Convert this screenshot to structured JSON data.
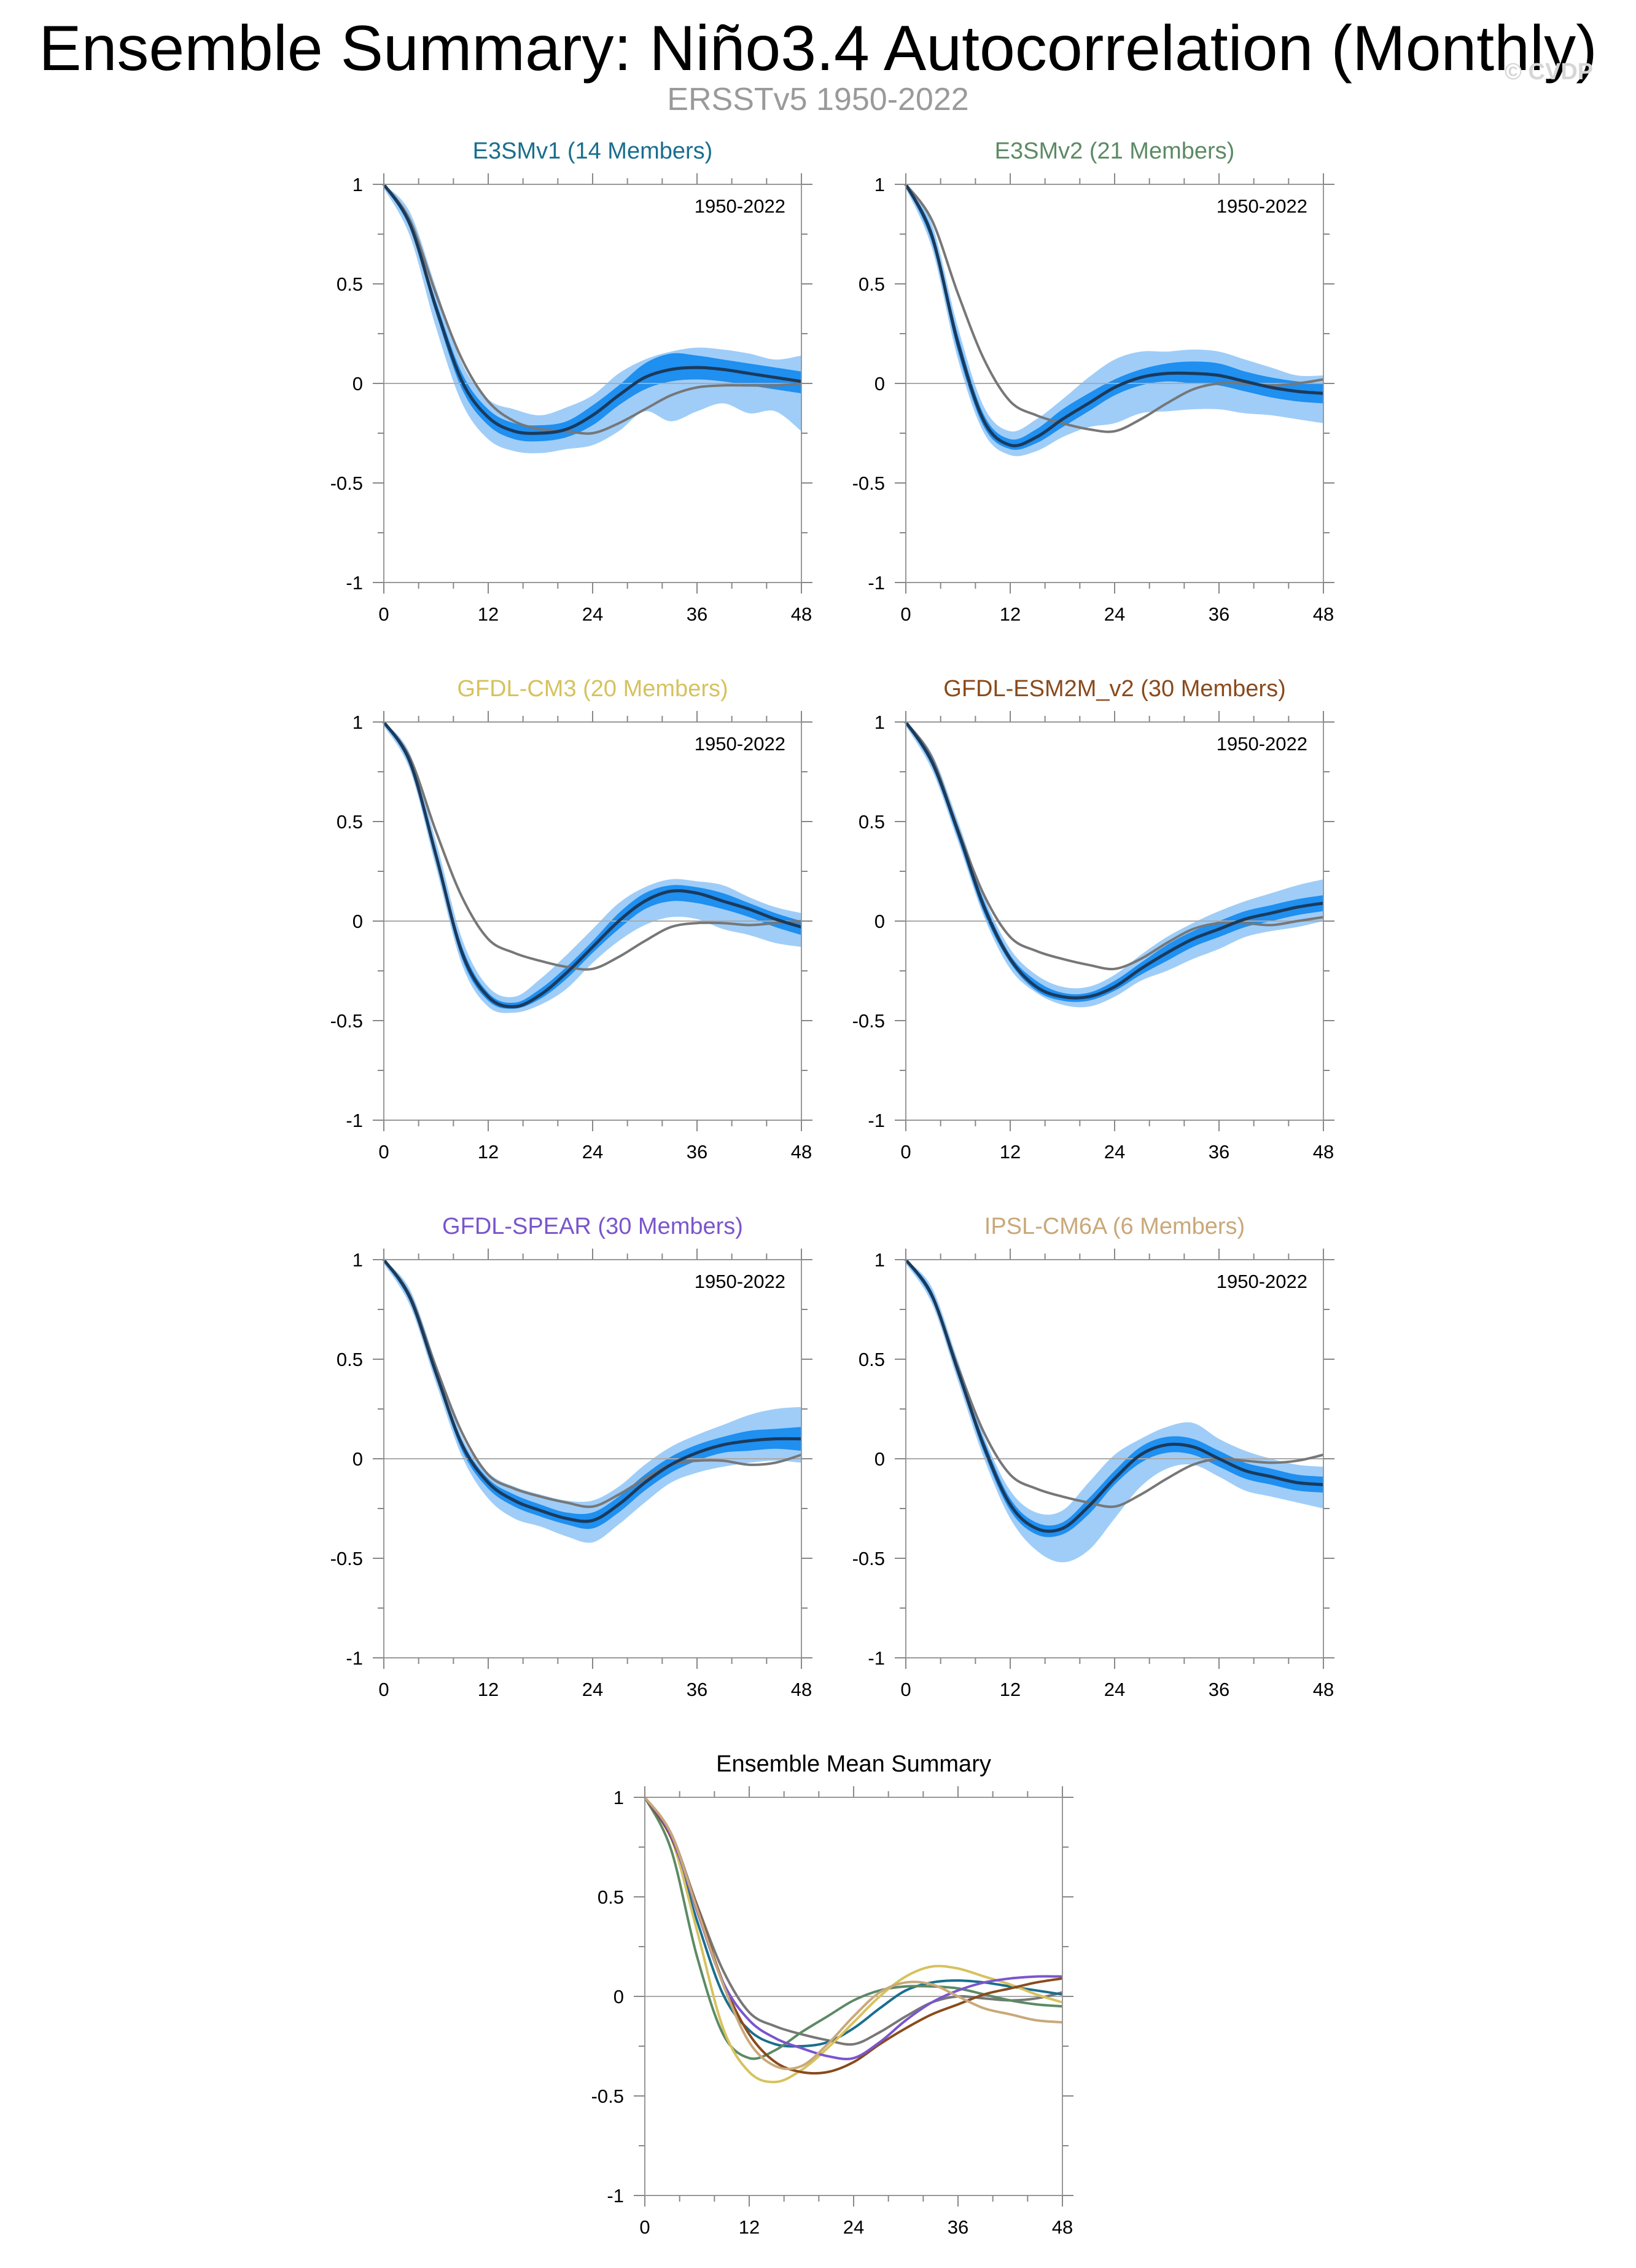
{
  "header": {
    "title": "Ensemble Summary: Niño3.4 Autocorrelation (Monthly)",
    "subtitle": "ERSSTv5 1950-2022",
    "watermark": "© CVDP"
  },
  "colors": {
    "obs_line": "#777777",
    "ens_mean_line": "#1a3a5c",
    "spread_outer": "#9fcdf8",
    "spread_inner": "#1f8ff0",
    "zero_line": "#aaaaaa"
  },
  "chart_data": [
    {
      "type": "line",
      "title": "E3SMv1 (14 Members)",
      "title_color": "#1a6e8e",
      "annotation": "1950-2022",
      "x_ticks": [
        0,
        12,
        24,
        36,
        48
      ],
      "y_ticks": [
        -1,
        -0.5,
        0,
        0.5,
        1
      ],
      "xlim": [
        0,
        48
      ],
      "ylim": [
        -1,
        1
      ],
      "lags": [
        0,
        3,
        6,
        9,
        12,
        15,
        18,
        21,
        24,
        27,
        30,
        33,
        36,
        39,
        42,
        45,
        48
      ],
      "series": [
        {
          "values": [
            1.0,
            0.82,
            0.45,
            0.12,
            -0.09,
            -0.19,
            -0.23,
            -0.24,
            -0.25,
            -0.2,
            -0.13,
            -0.06,
            -0.02,
            -0.01,
            -0.01,
            -0.01,
            0.0
          ]
        },
        {
          "values": [
            1.0,
            0.8,
            0.38,
            0.01,
            -0.17,
            -0.24,
            -0.25,
            -0.23,
            -0.16,
            -0.06,
            0.03,
            0.07,
            0.08,
            0.07,
            0.05,
            0.03,
            0.01
          ]
        }
      ],
      "band_outer": {
        "lower": [
          0.98,
          0.74,
          0.28,
          -0.1,
          -0.28,
          -0.34,
          -0.35,
          -0.33,
          -0.31,
          -0.24,
          -0.14,
          -0.19,
          -0.14,
          -0.1,
          -0.15,
          -0.14,
          -0.24
        ],
        "upper": [
          1.0,
          0.86,
          0.48,
          0.1,
          -0.08,
          -0.13,
          -0.16,
          -0.12,
          -0.06,
          0.05,
          0.12,
          0.16,
          0.18,
          0.17,
          0.15,
          0.12,
          0.14
        ]
      },
      "band_inner": {
        "lower": [
          0.99,
          0.78,
          0.35,
          -0.03,
          -0.21,
          -0.28,
          -0.29,
          -0.27,
          -0.21,
          -0.11,
          -0.03,
          0.01,
          0.02,
          0.01,
          -0.01,
          -0.03,
          -0.05
        ],
        "upper": [
          1.0,
          0.82,
          0.41,
          0.05,
          -0.13,
          -0.2,
          -0.21,
          -0.19,
          -0.11,
          -0.01,
          0.1,
          0.15,
          0.14,
          0.12,
          0.1,
          0.08,
          0.06
        ]
      }
    },
    {
      "type": "line",
      "title": "E3SMv2 (21 Members)",
      "title_color": "#5c8a64",
      "annotation": "1950-2022",
      "x_ticks": [
        0,
        12,
        24,
        36,
        48
      ],
      "y_ticks": [
        -1,
        -0.5,
        0,
        0.5,
        1
      ],
      "xlim": [
        0,
        48
      ],
      "ylim": [
        -1,
        1
      ],
      "lags": [
        0,
        3,
        6,
        9,
        12,
        15,
        18,
        21,
        24,
        27,
        30,
        33,
        36,
        39,
        42,
        45,
        48
      ],
      "series": [
        {
          "values": [
            1.0,
            0.82,
            0.45,
            0.12,
            -0.09,
            -0.16,
            -0.2,
            -0.23,
            -0.24,
            -0.18,
            -0.1,
            -0.03,
            0.0,
            0.0,
            -0.01,
            0.0,
            0.02
          ]
        },
        {
          "values": [
            1.0,
            0.74,
            0.2,
            -0.19,
            -0.31,
            -0.27,
            -0.18,
            -0.1,
            -0.02,
            0.03,
            0.05,
            0.05,
            0.04,
            0.01,
            -0.02,
            -0.04,
            -0.05
          ]
        }
      ],
      "band_outer": {
        "lower": [
          0.98,
          0.68,
          0.12,
          -0.25,
          -0.36,
          -0.34,
          -0.27,
          -0.22,
          -0.2,
          -0.15,
          -0.14,
          -0.13,
          -0.13,
          -0.15,
          -0.16,
          -0.18,
          -0.2
        ],
        "upper": [
          1.0,
          0.8,
          0.28,
          -0.12,
          -0.24,
          -0.18,
          -0.08,
          0.03,
          0.12,
          0.16,
          0.16,
          0.17,
          0.16,
          0.12,
          0.08,
          0.04,
          0.04
        ]
      },
      "band_inner": {
        "lower": [
          0.99,
          0.71,
          0.16,
          -0.22,
          -0.33,
          -0.3,
          -0.22,
          -0.14,
          -0.06,
          -0.01,
          0.01,
          0.0,
          -0.01,
          -0.04,
          -0.07,
          -0.09,
          -0.1
        ],
        "upper": [
          1.0,
          0.77,
          0.24,
          -0.16,
          -0.28,
          -0.23,
          -0.13,
          -0.05,
          0.02,
          0.07,
          0.1,
          0.11,
          0.1,
          0.06,
          0.03,
          0.01,
          0.0
        ]
      }
    },
    {
      "type": "line",
      "title": "GFDL-CM3 (20 Members)",
      "title_color": "#d6c25e",
      "annotation": "1950-2022",
      "x_ticks": [
        0,
        12,
        24,
        36,
        48
      ],
      "y_ticks": [
        -1,
        -0.5,
        0,
        0.5,
        1
      ],
      "xlim": [
        0,
        48
      ],
      "ylim": [
        -1,
        1
      ],
      "lags": [
        0,
        3,
        6,
        9,
        12,
        15,
        18,
        21,
        24,
        27,
        30,
        33,
        36,
        39,
        42,
        45,
        48
      ],
      "series": [
        {
          "values": [
            1.0,
            0.82,
            0.45,
            0.12,
            -0.09,
            -0.16,
            -0.2,
            -0.23,
            -0.24,
            -0.18,
            -0.1,
            -0.03,
            -0.01,
            -0.01,
            -0.02,
            -0.01,
            0.0
          ]
        },
        {
          "values": [
            1.0,
            0.8,
            0.33,
            -0.16,
            -0.38,
            -0.43,
            -0.37,
            -0.26,
            -0.13,
            0.0,
            0.1,
            0.15,
            0.14,
            0.1,
            0.06,
            0.01,
            -0.03
          ]
        }
      ],
      "band_outer": {
        "lower": [
          0.98,
          0.76,
          0.27,
          -0.22,
          -0.43,
          -0.46,
          -0.42,
          -0.34,
          -0.21,
          -0.1,
          -0.02,
          0.02,
          0.01,
          -0.04,
          -0.07,
          -0.11,
          -0.13
        ],
        "upper": [
          1.0,
          0.84,
          0.4,
          -0.09,
          -0.33,
          -0.38,
          -0.29,
          -0.17,
          -0.04,
          0.09,
          0.17,
          0.21,
          0.2,
          0.18,
          0.12,
          0.07,
          0.04
        ]
      },
      "band_inner": {
        "lower": [
          0.99,
          0.78,
          0.3,
          -0.19,
          -0.4,
          -0.44,
          -0.39,
          -0.29,
          -0.16,
          -0.04,
          0.06,
          0.1,
          0.09,
          0.06,
          0.02,
          -0.03,
          -0.07
        ],
        "upper": [
          1.0,
          0.82,
          0.36,
          -0.13,
          -0.36,
          -0.41,
          -0.34,
          -0.23,
          -0.1,
          0.04,
          0.14,
          0.18,
          0.17,
          0.14,
          0.09,
          0.04,
          0.0
        ]
      }
    },
    {
      "type": "line",
      "title": "GFDL-ESM2M_v2 (30 Members)",
      "title_color": "#8a4a1c",
      "annotation": "1950-2022",
      "x_ticks": [
        0,
        12,
        24,
        36,
        48
      ],
      "y_ticks": [
        -1,
        -0.5,
        0,
        0.5,
        1
      ],
      "xlim": [
        0,
        48
      ],
      "ylim": [
        -1,
        1
      ],
      "lags": [
        0,
        3,
        6,
        9,
        12,
        15,
        18,
        21,
        24,
        27,
        30,
        33,
        36,
        39,
        42,
        45,
        48
      ],
      "series": [
        {
          "values": [
            1.0,
            0.82,
            0.46,
            0.13,
            -0.08,
            -0.15,
            -0.19,
            -0.22,
            -0.24,
            -0.19,
            -0.11,
            -0.04,
            -0.01,
            -0.01,
            -0.02,
            0.0,
            0.02
          ]
        },
        {
          "values": [
            1.0,
            0.8,
            0.45,
            0.07,
            -0.19,
            -0.33,
            -0.38,
            -0.38,
            -0.33,
            -0.24,
            -0.16,
            -0.09,
            -0.04,
            0.01,
            0.04,
            0.07,
            0.09
          ]
        }
      ],
      "band_outer": {
        "lower": [
          0.98,
          0.76,
          0.4,
          0.02,
          -0.24,
          -0.36,
          -0.42,
          -0.43,
          -0.38,
          -0.3,
          -0.25,
          -0.19,
          -0.14,
          -0.08,
          -0.05,
          -0.03,
          0.0
        ],
        "upper": [
          1.0,
          0.84,
          0.5,
          0.12,
          -0.14,
          -0.27,
          -0.33,
          -0.33,
          -0.27,
          -0.17,
          -0.08,
          -0.01,
          0.05,
          0.1,
          0.14,
          0.18,
          0.21
        ]
      },
      "band_inner": {
        "lower": [
          0.99,
          0.78,
          0.42,
          0.04,
          -0.21,
          -0.35,
          -0.4,
          -0.4,
          -0.35,
          -0.27,
          -0.2,
          -0.13,
          -0.08,
          -0.03,
          0.0,
          0.03,
          0.05
        ],
        "upper": [
          1.0,
          0.82,
          0.48,
          0.1,
          -0.17,
          -0.3,
          -0.36,
          -0.36,
          -0.3,
          -0.21,
          -0.12,
          -0.05,
          0.0,
          0.05,
          0.08,
          0.11,
          0.13
        ]
      }
    },
    {
      "type": "line",
      "title": "GFDL-SPEAR (30 Members)",
      "title_color": "#7a55cc",
      "annotation": "1950-2022",
      "x_ticks": [
        0,
        12,
        24,
        36,
        48
      ],
      "y_ticks": [
        -1,
        -0.5,
        0,
        0.5,
        1
      ],
      "xlim": [
        0,
        48
      ],
      "ylim": [
        -1,
        1
      ],
      "lags": [
        0,
        3,
        6,
        9,
        12,
        15,
        18,
        21,
        24,
        27,
        30,
        33,
        36,
        39,
        42,
        45,
        48
      ],
      "series": [
        {
          "values": [
            1.0,
            0.82,
            0.46,
            0.13,
            -0.08,
            -0.15,
            -0.19,
            -0.22,
            -0.24,
            -0.18,
            -0.1,
            -0.03,
            -0.01,
            -0.01,
            -0.03,
            -0.02,
            0.02
          ]
        },
        {
          "values": [
            1.0,
            0.81,
            0.43,
            0.07,
            -0.12,
            -0.21,
            -0.26,
            -0.3,
            -0.31,
            -0.23,
            -0.12,
            -0.03,
            0.03,
            0.07,
            0.09,
            0.1,
            0.1
          ]
        }
      ],
      "band_outer": {
        "lower": [
          0.98,
          0.77,
          0.38,
          0.01,
          -0.2,
          -0.3,
          -0.34,
          -0.39,
          -0.42,
          -0.33,
          -0.22,
          -0.12,
          -0.07,
          -0.04,
          -0.02,
          -0.01,
          -0.02
        ],
        "upper": [
          1.0,
          0.85,
          0.48,
          0.11,
          -0.07,
          -0.14,
          -0.18,
          -0.21,
          -0.21,
          -0.14,
          -0.03,
          0.06,
          0.12,
          0.17,
          0.22,
          0.25,
          0.26
        ]
      },
      "band_inner": {
        "lower": [
          0.99,
          0.79,
          0.41,
          0.04,
          -0.15,
          -0.24,
          -0.29,
          -0.33,
          -0.35,
          -0.27,
          -0.16,
          -0.07,
          -0.01,
          0.03,
          0.04,
          0.05,
          0.04
        ],
        "upper": [
          1.0,
          0.83,
          0.45,
          0.09,
          -0.1,
          -0.18,
          -0.23,
          -0.27,
          -0.27,
          -0.19,
          -0.08,
          0.01,
          0.07,
          0.11,
          0.14,
          0.15,
          0.16
        ]
      }
    },
    {
      "type": "line",
      "title": "IPSL-CM6A (6 Members)",
      "title_color": "#c9a87a",
      "annotation": "1950-2022",
      "x_ticks": [
        0,
        12,
        24,
        36,
        48
      ],
      "y_ticks": [
        -1,
        -0.5,
        0,
        0.5,
        1
      ],
      "xlim": [
        0,
        48
      ],
      "ylim": [
        -1,
        1
      ],
      "lags": [
        0,
        3,
        6,
        9,
        12,
        15,
        18,
        21,
        24,
        27,
        30,
        33,
        36,
        39,
        42,
        45,
        48
      ],
      "series": [
        {
          "values": [
            1.0,
            0.82,
            0.46,
            0.13,
            -0.08,
            -0.15,
            -0.19,
            -0.22,
            -0.24,
            -0.18,
            -0.1,
            -0.03,
            0.0,
            -0.01,
            -0.02,
            -0.01,
            0.02
          ]
        },
        {
          "values": [
            1.0,
            0.82,
            0.44,
            0.06,
            -0.23,
            -0.35,
            -0.35,
            -0.24,
            -0.1,
            0.02,
            0.07,
            0.06,
            0.0,
            -0.06,
            -0.09,
            -0.12,
            -0.13
          ]
        }
      ],
      "band_outer": {
        "lower": [
          0.98,
          0.78,
          0.39,
          0.0,
          -0.3,
          -0.46,
          -0.52,
          -0.46,
          -0.3,
          -0.14,
          -0.05,
          -0.03,
          -0.09,
          -0.16,
          -0.19,
          -0.22,
          -0.25
        ],
        "upper": [
          1.0,
          0.86,
          0.49,
          0.11,
          -0.16,
          -0.27,
          -0.26,
          -0.12,
          0.02,
          0.1,
          0.16,
          0.18,
          0.1,
          0.04,
          0.0,
          -0.03,
          -0.04
        ]
      },
      "band_inner": {
        "lower": [
          0.99,
          0.8,
          0.42,
          0.03,
          -0.26,
          -0.38,
          -0.38,
          -0.28,
          -0.13,
          -0.02,
          0.03,
          0.02,
          -0.04,
          -0.1,
          -0.13,
          -0.16,
          -0.17
        ],
        "upper": [
          1.0,
          0.84,
          0.46,
          0.09,
          -0.2,
          -0.32,
          -0.32,
          -0.2,
          -0.06,
          0.06,
          0.11,
          0.1,
          0.04,
          -0.02,
          -0.05,
          -0.08,
          -0.09
        ]
      }
    },
    {
      "type": "line",
      "title": "Ensemble Mean Summary",
      "title_color": "#000000",
      "x_ticks": [
        0,
        12,
        24,
        36,
        48
      ],
      "y_ticks": [
        -1,
        -0.5,
        0,
        0.5,
        1
      ],
      "xlim": [
        0,
        48
      ],
      "ylim": [
        -1,
        1
      ],
      "lags": [
        0,
        3,
        6,
        9,
        12,
        15,
        18,
        21,
        24,
        27,
        30,
        33,
        36,
        39,
        42,
        45,
        48
      ],
      "series": [
        {
          "color": "#777777",
          "values": [
            1.0,
            0.82,
            0.46,
            0.13,
            -0.08,
            -0.15,
            -0.19,
            -0.22,
            -0.24,
            -0.18,
            -0.1,
            -0.03,
            0.0,
            -0.01,
            -0.02,
            -0.01,
            0.02
          ]
        },
        {
          "color": "#1a6e8e",
          "values": [
            1.0,
            0.8,
            0.38,
            0.01,
            -0.17,
            -0.24,
            -0.25,
            -0.23,
            -0.16,
            -0.06,
            0.03,
            0.07,
            0.08,
            0.07,
            0.05,
            0.03,
            0.01
          ]
        },
        {
          "color": "#5c8a64",
          "values": [
            1.0,
            0.74,
            0.2,
            -0.19,
            -0.31,
            -0.27,
            -0.18,
            -0.1,
            -0.02,
            0.03,
            0.05,
            0.05,
            0.04,
            0.01,
            -0.02,
            -0.04,
            -0.05
          ]
        },
        {
          "color": "#d6c25e",
          "values": [
            1.0,
            0.8,
            0.33,
            -0.16,
            -0.38,
            -0.43,
            -0.37,
            -0.26,
            -0.13,
            0.0,
            0.1,
            0.15,
            0.14,
            0.1,
            0.06,
            0.01,
            -0.03
          ]
        },
        {
          "color": "#8a4a1c",
          "values": [
            1.0,
            0.8,
            0.45,
            0.07,
            -0.19,
            -0.33,
            -0.38,
            -0.38,
            -0.33,
            -0.24,
            -0.16,
            -0.09,
            -0.04,
            0.01,
            0.04,
            0.07,
            0.09
          ]
        },
        {
          "color": "#7a55cc",
          "values": [
            1.0,
            0.81,
            0.43,
            0.07,
            -0.12,
            -0.21,
            -0.26,
            -0.3,
            -0.31,
            -0.23,
            -0.12,
            -0.03,
            0.03,
            0.07,
            0.09,
            0.1,
            0.1
          ]
        },
        {
          "color": "#c9a87a",
          "values": [
            1.0,
            0.82,
            0.44,
            0.06,
            -0.23,
            -0.35,
            -0.35,
            -0.24,
            -0.1,
            0.02,
            0.07,
            0.06,
            0.0,
            -0.06,
            -0.09,
            -0.12,
            -0.13
          ]
        }
      ]
    }
  ]
}
